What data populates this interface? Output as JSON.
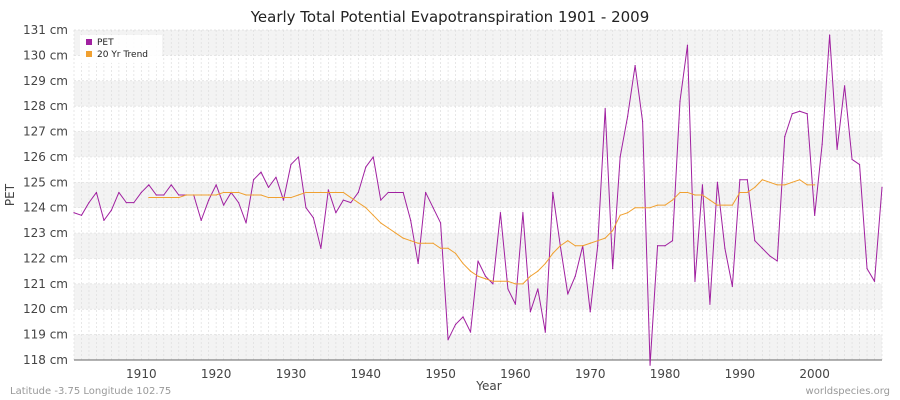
{
  "chart_data": {
    "type": "line",
    "title": "Yearly Total Potential Evapotranspiration 1901 - 2009",
    "xlabel": "Year",
    "ylabel": "PET",
    "xlim": [
      1901,
      2009
    ],
    "ylim": [
      118,
      131
    ],
    "x_ticks": [
      1910,
      1920,
      1930,
      1940,
      1950,
      1960,
      1970,
      1980,
      1990,
      2000
    ],
    "x_tick_labels": [
      "1910",
      "1920",
      "1930",
      "1940",
      "1950",
      "1960",
      "1970",
      "1980",
      "1990",
      "2000"
    ],
    "y_ticks": [
      118,
      119,
      120,
      121,
      122,
      123,
      124,
      125,
      126,
      127,
      128,
      129,
      130,
      131
    ],
    "y_tick_labels": [
      "118 cm",
      "119 cm",
      "120 cm",
      "121 cm",
      "122 cm",
      "123 cm",
      "124 cm",
      "125 cm",
      "126 cm",
      "127 cm",
      "128 cm",
      "129 cm",
      "130 cm",
      "131 cm"
    ],
    "legend": {
      "placement": "top-left"
    },
    "series": [
      {
        "name": "PET",
        "color": "#a020a0",
        "x_start": 1901,
        "values": [
          123.8,
          123.7,
          124.2,
          124.6,
          123.5,
          123.9,
          124.6,
          124.2,
          124.2,
          124.6,
          124.9,
          124.5,
          124.5,
          124.9,
          124.5,
          124.5,
          124.5,
          123.5,
          124.3,
          124.9,
          124.1,
          124.6,
          124.2,
          123.4,
          125.1,
          125.4,
          124.8,
          125.2,
          124.3,
          125.7,
          126.0,
          124.0,
          123.6,
          122.4,
          124.7,
          123.8,
          124.3,
          124.2,
          124.6,
          125.6,
          126.0,
          124.3,
          124.6,
          124.6,
          124.6,
          123.5,
          121.8,
          124.6,
          124.0,
          123.4,
          118.8,
          119.4,
          119.7,
          119.1,
          121.9,
          121.3,
          121.0,
          123.8,
          120.8,
          120.2,
          123.8,
          119.9,
          120.8,
          119.1,
          124.6,
          122.5,
          120.6,
          121.3,
          122.5,
          119.9,
          122.5,
          127.9,
          121.6,
          126.0,
          127.6,
          129.6,
          127.4,
          117.8,
          122.5,
          122.5,
          122.7,
          128.2,
          130.4,
          121.1,
          124.9,
          120.2,
          125.0,
          122.4,
          120.9,
          125.1,
          125.1,
          122.7,
          122.4,
          122.1,
          121.9,
          126.8,
          127.7,
          127.8,
          127.7,
          123.7,
          126.5,
          130.8,
          126.3,
          128.8,
          125.9,
          125.7,
          121.6,
          121.1,
          124.8
        ]
      },
      {
        "name": "20 Yr Trend",
        "color": "#f0a030",
        "x_start": 1911,
        "values": [
          124.4,
          124.4,
          124.4,
          124.4,
          124.4,
          124.5,
          124.5,
          124.5,
          124.5,
          124.5,
          124.6,
          124.6,
          124.6,
          124.5,
          124.5,
          124.5,
          124.4,
          124.4,
          124.4,
          124.4,
          124.5,
          124.6,
          124.6,
          124.6,
          124.6,
          124.6,
          124.6,
          124.4,
          124.2,
          124.0,
          123.7,
          123.4,
          123.2,
          123.0,
          122.8,
          122.7,
          122.6,
          122.6,
          122.6,
          122.4,
          122.4,
          122.2,
          121.8,
          121.5,
          121.3,
          121.2,
          121.1,
          121.1,
          121.1,
          121.0,
          121.0,
          121.3,
          121.5,
          121.8,
          122.2,
          122.5,
          122.7,
          122.5,
          122.5,
          122.6,
          122.7,
          122.8,
          123.1,
          123.7,
          123.8,
          124.0,
          124.0,
          124.0,
          124.1,
          124.1,
          124.3,
          124.6,
          124.6,
          124.5,
          124.5,
          124.3,
          124.1,
          124.1,
          124.1,
          124.6,
          124.6,
          124.8,
          125.1,
          125.0,
          124.9,
          124.9,
          125.0,
          125.1,
          124.9,
          124.9
        ]
      }
    ]
  },
  "footer": {
    "left": "Latitude -3.75 Longitude 102.75",
    "right": "worldspecies.org"
  }
}
